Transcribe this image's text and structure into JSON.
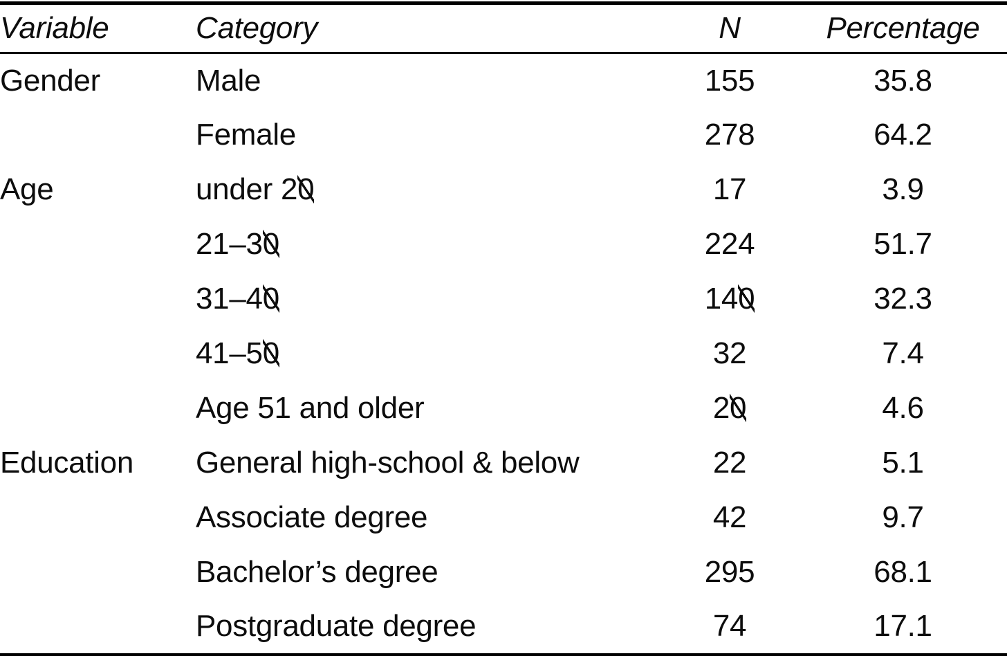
{
  "page": {
    "background_color": "#ffffff",
    "text_color": "#0d0d0d",
    "rule_color": "#000000"
  },
  "table": {
    "columns": [
      {
        "key": "variable",
        "label": "Variable"
      },
      {
        "key": "category",
        "label": "Category"
      },
      {
        "key": "n",
        "label": "N"
      },
      {
        "key": "percentage",
        "label": "Percentage"
      }
    ],
    "rows": [
      {
        "variable": "Gender",
        "category": "Male",
        "n": "155",
        "pct": "35.8"
      },
      {
        "variable": "",
        "category": "Female",
        "n": "278",
        "pct": "64.2"
      },
      {
        "variable": "Age",
        "category": "under 20",
        "n": "17",
        "pct": "3.9"
      },
      {
        "variable": "",
        "category": "21–30",
        "n": "224",
        "pct": "51.7"
      },
      {
        "variable": "",
        "category": "31–40",
        "n": "140",
        "pct": "32.3"
      },
      {
        "variable": "",
        "category": "41–50",
        "n": "32",
        "pct": "7.4"
      },
      {
        "variable": "",
        "category": "Age 51 and older",
        "n": "20",
        "pct": "4.6"
      },
      {
        "variable": "Education",
        "category": "General high-school & below",
        "n": "22",
        "pct": "5.1"
      },
      {
        "variable": "",
        "category": "Associate degree",
        "n": "42",
        "pct": "9.7"
      },
      {
        "variable": "",
        "category": "Bachelor’s degree",
        "n": "295",
        "pct": "68.1"
      },
      {
        "variable": "",
        "category": "Postgraduate degree",
        "n": "74",
        "pct": "17.1"
      }
    ]
  },
  "chart_data": {
    "type": "table",
    "columns": [
      "Variable",
      "Category",
      "N",
      "Percentage"
    ],
    "rows": [
      [
        "Gender",
        "Male",
        155,
        35.8
      ],
      [
        "",
        "Female",
        278,
        64.2
      ],
      [
        "Age",
        "under 20",
        17,
        3.9
      ],
      [
        "",
        "21–30",
        224,
        51.7
      ],
      [
        "",
        "31–40",
        140,
        32.3
      ],
      [
        "",
        "41–50",
        32,
        7.4
      ],
      [
        "",
        "Age 51 and older",
        20,
        4.6
      ],
      [
        "Education",
        "General high-school & below",
        22,
        5.1
      ],
      [
        "",
        "Associate degree",
        42,
        9.7
      ],
      [
        "",
        "Bachelor’s degree",
        295,
        68.1
      ],
      [
        "",
        "Postgraduate degree",
        74,
        17.1
      ]
    ]
  }
}
